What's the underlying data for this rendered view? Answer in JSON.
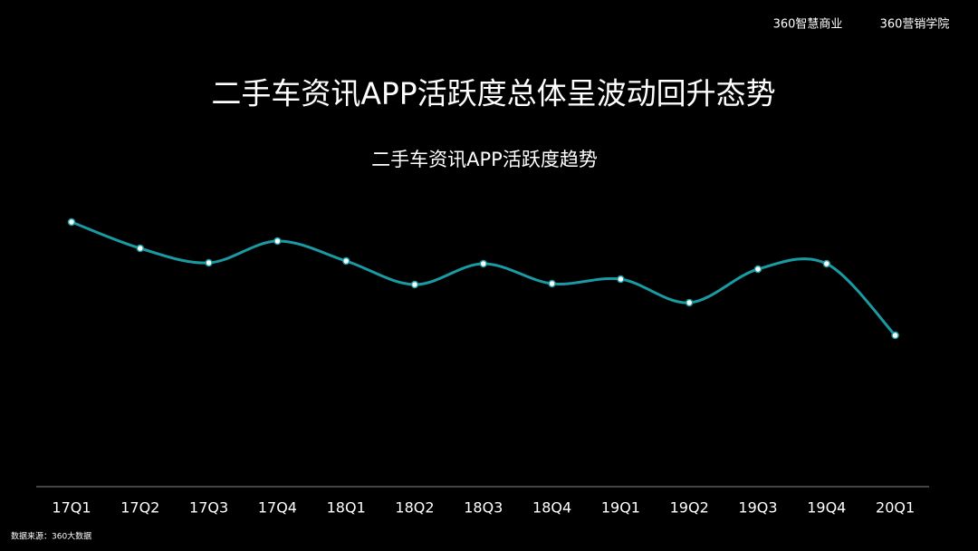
{
  "header": {
    "brand_left": "360智慧商业",
    "brand_right": "360营销学院"
  },
  "chart_data": {
    "type": "line",
    "title": "二手车资讯APP活跃度总体呈波动回升态势",
    "subtitle": "二手车资讯APP活跃度趋势",
    "categories": [
      "17Q1",
      "17Q2",
      "17Q3",
      "17Q4",
      "18Q1",
      "18Q2",
      "18Q3",
      "18Q4",
      "19Q1",
      "19Q2",
      "19Q3",
      "19Q4",
      "20Q1"
    ],
    "series": [
      {
        "color": "#1a9ba3",
        "values": [
          292,
          263,
          247,
          271,
          249,
          223,
          246,
          224,
          229,
          203,
          240,
          246,
          167
        ]
      }
    ]
  },
  "footer": {
    "source": "数据来源：360大数据"
  }
}
